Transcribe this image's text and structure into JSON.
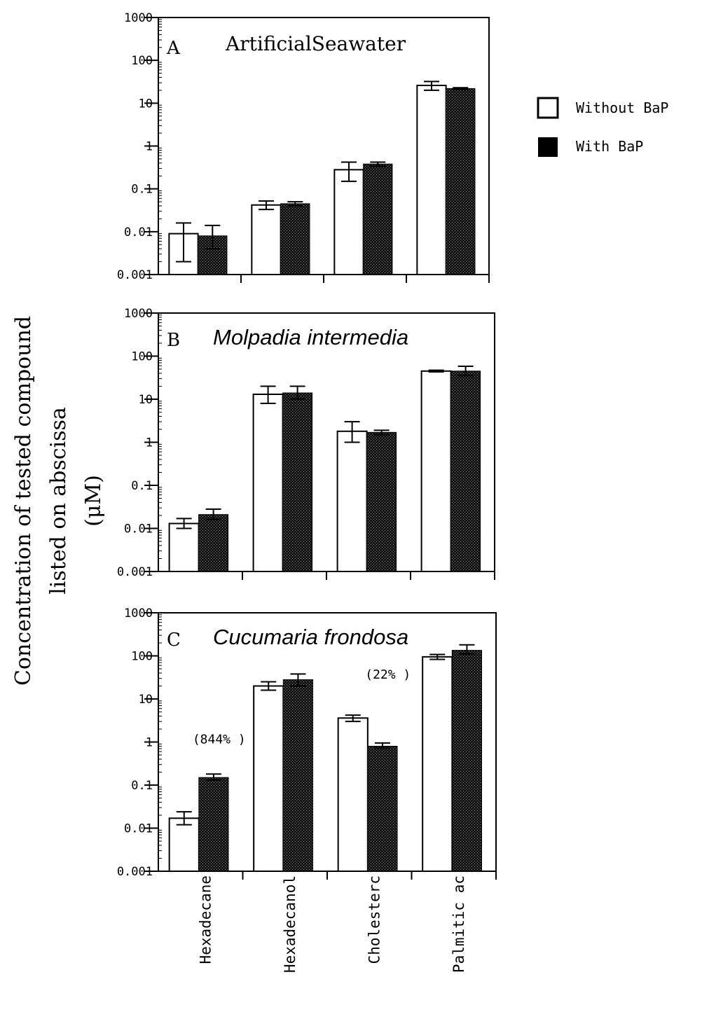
{
  "chart_data": {
    "type": "bar",
    "yscale": "log",
    "ylim": [
      0.001,
      1000
    ],
    "yticks": [
      "1000",
      "100",
      "10",
      "1",
      "0.1",
      "0.01",
      "0.001"
    ],
    "ytick_values": [
      1000,
      100,
      10,
      1,
      0.1,
      0.01,
      0.001
    ],
    "ylabel": [
      "Concentration of tested compound",
      "listed on abscissa",
      "(μM)"
    ],
    "categories": [
      "Hexadecane",
      "Hexadecanol",
      "Cholesterol",
      "Palmitic acid"
    ],
    "category_labels_visible": [
      "Hexadecane",
      "Hexadecanol",
      "Cholesterc",
      "Palmitic ac"
    ],
    "legend": {
      "placement": "top-right",
      "entries": [
        {
          "label": "Without BaP",
          "color": "#ffffff"
        },
        {
          "label": "With BaP",
          "color": "#000000"
        }
      ]
    },
    "panels": [
      {
        "letter": "A",
        "title": "ArtificialSeawater",
        "title_italic": false,
        "series": [
          {
            "name": "Without BaP",
            "values": [
              0.009,
              0.042,
              0.28,
              26
            ],
            "err_low": [
              0.002,
              0.033,
              0.15,
              20
            ],
            "err_high": [
              0.016,
              0.052,
              0.42,
              32
            ]
          },
          {
            "name": "With BaP",
            "values": [
              0.008,
              0.045,
              0.38,
              22
            ],
            "err_low": [
              0.004,
              0.04,
              0.34,
              21
            ],
            "err_high": [
              0.014,
              0.05,
              0.42,
              23
            ]
          }
        ],
        "annotations": []
      },
      {
        "letter": "B",
        "title": "Molpadia intermedia",
        "title_italic": true,
        "series": [
          {
            "name": "Without BaP",
            "values": [
              0.013,
              13,
              1.8,
              45
            ],
            "err_low": [
              0.01,
              8,
              1.0,
              43
            ],
            "err_high": [
              0.017,
              20,
              3.0,
              47
            ]
          },
          {
            "name": "With BaP",
            "values": [
              0.021,
              14,
              1.7,
              45
            ],
            "err_low": [
              0.016,
              10,
              1.5,
              35
            ],
            "err_high": [
              0.028,
              20,
              1.9,
              58
            ]
          }
        ],
        "annotations": []
      },
      {
        "letter": "C",
        "title": "Cucumaria frondosa",
        "title_italic": true,
        "series": [
          {
            "name": "Without BaP",
            "values": [
              0.017,
              20,
              3.6,
              95
            ],
            "err_low": [
              0.012,
              16,
              3.0,
              83
            ],
            "err_high": [
              0.024,
              25,
              4.2,
              108
            ]
          },
          {
            "name": "With BaP",
            "values": [
              0.15,
              28,
              0.8,
              135
            ],
            "err_low": [
              0.13,
              20,
              0.72,
              110
            ],
            "err_high": [
              0.18,
              38,
              0.95,
              180
            ]
          }
        ],
        "annotations": [
          {
            "text": "(844% )",
            "category_index": 0
          },
          {
            "text": "(22% )",
            "category_index": 2
          }
        ]
      }
    ]
  }
}
